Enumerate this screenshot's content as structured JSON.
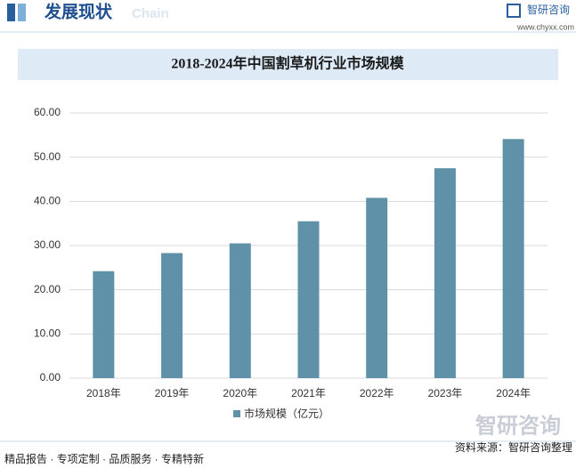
{
  "header": {
    "title": "发展现状",
    "subtitle": "Chain",
    "brand": "智研咨询",
    "url": "www.chyxx.com"
  },
  "chart_data": {
    "type": "bar",
    "title": "2018-2024年中国割草机行业市场规模",
    "categories": [
      "2018年",
      "2019年",
      "2020年",
      "2021年",
      "2022年",
      "2023年",
      "2024年"
    ],
    "series": [
      {
        "name": "市场规模（亿元）",
        "color": "#5f92a8",
        "values": [
          24.2,
          28.3,
          30.5,
          35.5,
          40.8,
          47.5,
          54.1
        ]
      }
    ],
    "ylim": [
      0,
      60
    ],
    "yticks": [
      {
        "value": 0,
        "label": "0.00"
      },
      {
        "value": 10,
        "label": "10.00"
      },
      {
        "value": 20,
        "label": "20.00"
      },
      {
        "value": 30,
        "label": "30.00"
      },
      {
        "value": 40,
        "label": "40.00"
      },
      {
        "value": 50,
        "label": "50.00"
      },
      {
        "value": 60,
        "label": "60.00"
      }
    ],
    "grid": true,
    "legend": "bottom"
  },
  "footer": {
    "tagline": "精品报告 · 专项定制 · 品质服务 · 专精特新",
    "source": "资料来源：智研咨询整理",
    "logo": "智研咨询"
  }
}
